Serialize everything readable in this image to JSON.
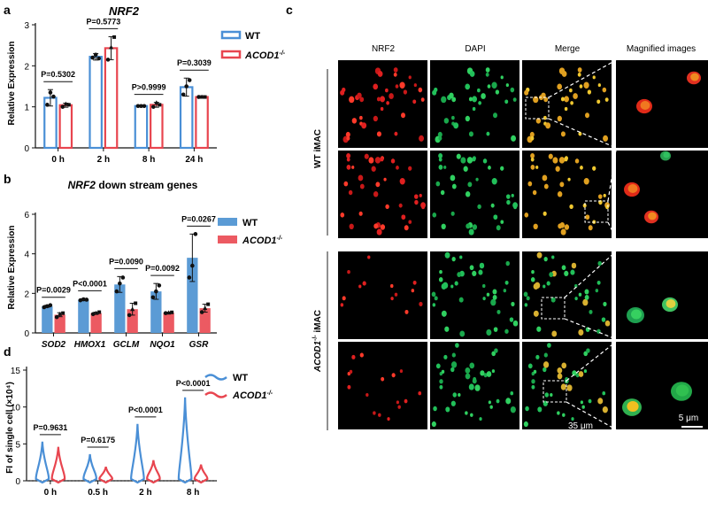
{
  "colors": {
    "wt": "#4a8fd6",
    "acod": "#e8454f",
    "wt_fill": "#5b9bd5",
    "acod_fill": "#ec5a62"
  },
  "panels": {
    "a": {
      "letter": "a"
    },
    "b": {
      "letter": "b"
    },
    "c": {
      "letter": "c"
    },
    "d": {
      "letter": "d"
    }
  },
  "chart_data": [
    {
      "panel": "a",
      "type": "bar",
      "style": "open-bars",
      "title": "NRF2",
      "ylabel": "Relative Expression",
      "categories": [
        "0 h",
        "2 h",
        "8 h",
        "24 h"
      ],
      "ylim": [
        0,
        3
      ],
      "yticks": [
        "0",
        "1",
        "2",
        "3"
      ],
      "grid": false,
      "legend": "top-right",
      "series": [
        {
          "name": "WT",
          "values": [
            1.22,
            2.22,
            1.02,
            1.48
          ],
          "err": [
            0.2,
            0.08,
            0.02,
            0.22
          ],
          "points": [
            [
              1.05,
              1.35,
              1.25
            ],
            [
              2.2,
              2.27,
              2.18
            ],
            [
              1.02,
              1.02,
              1.02
            ],
            [
              1.3,
              1.5,
              1.65
            ]
          ]
        },
        {
          "name": "ACOD1-/-",
          "values": [
            1.04,
            2.43,
            1.05,
            1.24
          ],
          "err": [
            0.05,
            0.28,
            0.06,
            0.03
          ],
          "points": [
            [
              1.0,
              1.07,
              1.05
            ],
            [
              2.15,
              2.45,
              2.7
            ],
            [
              1.0,
              1.1,
              1.05
            ],
            [
              1.24,
              1.24,
              1.24
            ]
          ]
        }
      ],
      "pvalues": [
        "P=0.5302",
        "P=0.5773",
        "P>0.9999",
        "P=0.3039"
      ]
    },
    {
      "panel": "b",
      "type": "bar",
      "style": "filled-bars",
      "title_italic": "NRF2",
      "title_rest": " down stream genes",
      "ylabel": "Relative Expression",
      "categories": [
        "SOD2",
        "HMOX1",
        "GCLM",
        "NQO1",
        "GSR"
      ],
      "ylim": [
        0,
        6
      ],
      "yticks": [
        "0",
        "2",
        "4",
        "6"
      ],
      "grid": false,
      "legend": "right",
      "series": [
        {
          "name": "WT",
          "values": [
            1.35,
            1.68,
            2.45,
            2.1,
            3.8
          ],
          "err": [
            0.05,
            0.05,
            0.4,
            0.4,
            1.2
          ],
          "points": [
            [
              1.3,
              1.35,
              1.4
            ],
            [
              1.65,
              1.7,
              1.68
            ],
            [
              2.1,
              2.5,
              2.8
            ],
            [
              1.8,
              2.1,
              2.4
            ],
            [
              2.8,
              3.4,
              5.0
            ]
          ]
        },
        {
          "name": "ACOD1-/-",
          "values": [
            0.92,
            1.0,
            1.2,
            1.02,
            1.25
          ],
          "err": [
            0.1,
            0.05,
            0.3,
            0.03,
            0.2
          ],
          "points": [
            [
              0.8,
              0.95,
              1.0
            ],
            [
              0.95,
              1.0,
              1.05
            ],
            [
              0.9,
              1.2,
              1.5
            ],
            [
              1.0,
              1.02,
              1.04
            ],
            [
              1.05,
              1.25,
              1.45
            ]
          ]
        }
      ],
      "pvalues": [
        "P=0.0029",
        "P<0.0001",
        "P=0.0090",
        "P=0.0092",
        "P=0.0267"
      ]
    },
    {
      "panel": "d",
      "type": "violin",
      "ylabel": "FI of single cell (×10⁴)",
      "categories": [
        "0 h",
        "0.5 h",
        "2 h",
        "8 h"
      ],
      "ylim": [
        0,
        15
      ],
      "yticks": [
        "0",
        "5",
        "10",
        "15"
      ],
      "grid": false,
      "legend": "top-right",
      "series": [
        {
          "name": "WT",
          "max": [
            5.3,
            3.6,
            7.7,
            11.3
          ]
        },
        {
          "name": "ACOD1-/-",
          "max": [
            4.6,
            1.9,
            2.8,
            2.2
          ]
        }
      ],
      "pvalues": [
        "P=0.9631",
        "P=0.6175",
        "P<0.0001",
        "P<0.0001"
      ]
    }
  ],
  "micrographs": {
    "columns": [
      "NRF2",
      "DAPI",
      "Merge",
      "Magnified images"
    ],
    "row_groups": [
      "WT iMAC",
      "ACOD1-/- iMAC"
    ],
    "scalebar_main": "35 μm",
    "scalebar_mag": "5 μm"
  }
}
